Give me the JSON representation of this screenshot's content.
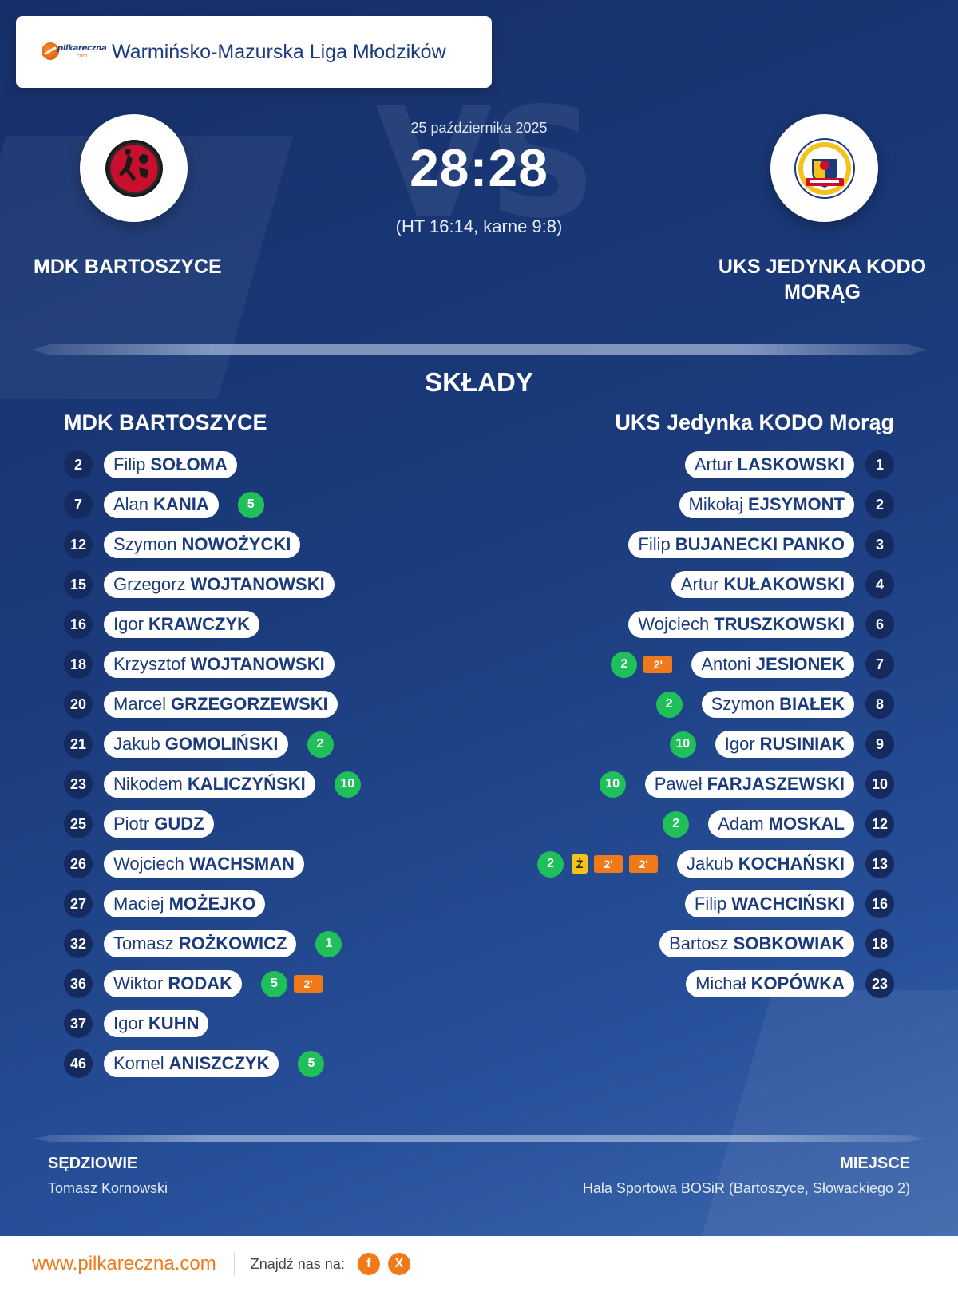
{
  "league": {
    "title": "Warmińsko-Mazurska Liga Młodzików",
    "logo_brand": "pilkareczna",
    "logo_sub": ".com"
  },
  "match": {
    "date": "25 października 2025",
    "score": "28:28",
    "detail": "(HT 16:14, karne 9:8)",
    "vs_text": "VS"
  },
  "home_team": {
    "name": "MDK BARTOSZYCE",
    "lineup_title": "MDK BARTOSZYCE",
    "logo_icon": "mdk-bartoszyce-crest-icon"
  },
  "away_team": {
    "name": "UKS JEDYNKA KODO MORĄG",
    "lineup_title": "UKS Jedynka KODO Morąg",
    "logo_icon": "uks-jedynka-crest-icon"
  },
  "section_title": "SKŁADY",
  "home_players": [
    {
      "number": "2",
      "first": "Filip",
      "last": "SOŁOMA",
      "goals": "",
      "yellow": "",
      "suspensions": []
    },
    {
      "number": "7",
      "first": "Alan",
      "last": "KANIA",
      "goals": "5",
      "yellow": "",
      "suspensions": []
    },
    {
      "number": "12",
      "first": "Szymon",
      "last": "NOWOŻYCKI",
      "goals": "",
      "yellow": "",
      "suspensions": []
    },
    {
      "number": "15",
      "first": "Grzegorz",
      "last": "WOJTANOWSKI",
      "goals": "",
      "yellow": "",
      "suspensions": []
    },
    {
      "number": "16",
      "first": "Igor",
      "last": "KRAWCZYK",
      "goals": "",
      "yellow": "",
      "suspensions": []
    },
    {
      "number": "18",
      "first": "Krzysztof",
      "last": "WOJTANOWSKI",
      "goals": "",
      "yellow": "",
      "suspensions": []
    },
    {
      "number": "20",
      "first": "Marcel",
      "last": "GRZEGORZEWSKI",
      "goals": "",
      "yellow": "",
      "suspensions": []
    },
    {
      "number": "21",
      "first": "Jakub",
      "last": "GOMOLIŃSKI",
      "goals": "2",
      "yellow": "",
      "suspensions": []
    },
    {
      "number": "23",
      "first": "Nikodem",
      "last": "KALICZYŃSKI",
      "goals": "10",
      "yellow": "",
      "suspensions": []
    },
    {
      "number": "25",
      "first": "Piotr",
      "last": "GUDZ",
      "goals": "",
      "yellow": "",
      "suspensions": []
    },
    {
      "number": "26",
      "first": "Wojciech",
      "last": "WACHSMAN",
      "goals": "",
      "yellow": "",
      "suspensions": []
    },
    {
      "number": "27",
      "first": "Maciej",
      "last": "MOŻEJKO",
      "goals": "",
      "yellow": "",
      "suspensions": []
    },
    {
      "number": "32",
      "first": "Tomasz",
      "last": "ROŻKOWICZ",
      "goals": "1",
      "yellow": "",
      "suspensions": []
    },
    {
      "number": "36",
      "first": "Wiktor",
      "last": "RODAK",
      "goals": "5",
      "yellow": "",
      "suspensions": [
        "2'"
      ]
    },
    {
      "number": "37",
      "first": "Igor",
      "last": "KUHN",
      "goals": "",
      "yellow": "",
      "suspensions": []
    },
    {
      "number": "46",
      "first": "Kornel",
      "last": "ANISZCZYK",
      "goals": "5",
      "yellow": "",
      "suspensions": []
    }
  ],
  "away_players": [
    {
      "number": "1",
      "first": "Artur",
      "last": "LASKOWSKI",
      "goals": "",
      "yellow": "",
      "suspensions": []
    },
    {
      "number": "2",
      "first": "Mikołaj",
      "last": "EJSYMONT",
      "goals": "",
      "yellow": "",
      "suspensions": []
    },
    {
      "number": "3",
      "first": "Filip",
      "last": "BUJANECKI PANKO",
      "goals": "",
      "yellow": "",
      "suspensions": []
    },
    {
      "number": "4",
      "first": "Artur",
      "last": "KUŁAKOWSKI",
      "goals": "",
      "yellow": "",
      "suspensions": []
    },
    {
      "number": "6",
      "first": "Wojciech",
      "last": "TRUSZKOWSKI",
      "goals": "",
      "yellow": "",
      "suspensions": []
    },
    {
      "number": "7",
      "first": "Antoni",
      "last": "JESIONEK",
      "goals": "2",
      "yellow": "",
      "suspensions": [
        "2'"
      ]
    },
    {
      "number": "8",
      "first": "Szymon",
      "last": "BIAŁEK",
      "goals": "2",
      "yellow": "",
      "suspensions": []
    },
    {
      "number": "9",
      "first": "Igor",
      "last": "RUSINIAK",
      "goals": "10",
      "yellow": "",
      "suspensions": []
    },
    {
      "number": "10",
      "first": "Paweł",
      "last": "FARJASZEWSKI",
      "goals": "10",
      "yellow": "",
      "suspensions": []
    },
    {
      "number": "12",
      "first": "Adam",
      "last": "MOSKAL",
      "goals": "2",
      "yellow": "",
      "suspensions": []
    },
    {
      "number": "13",
      "first": "Jakub",
      "last": "KOCHAŃSKI",
      "goals": "2",
      "yellow": "Ż",
      "suspensions": [
        "2'",
        "2'"
      ]
    },
    {
      "number": "16",
      "first": "Filip",
      "last": "WACHCIŃSKI",
      "goals": "",
      "yellow": "",
      "suspensions": []
    },
    {
      "number": "18",
      "first": "Bartosz",
      "last": "SOBKOWIAK",
      "goals": "",
      "yellow": "",
      "suspensions": []
    },
    {
      "number": "23",
      "first": "Michał",
      "last": "KOPÓWKA",
      "goals": "",
      "yellow": "",
      "suspensions": []
    }
  ],
  "officials": {
    "label": "SĘDZIOWIE",
    "value": "Tomasz Kornowski"
  },
  "venue": {
    "label": "MIEJSCE",
    "value": "Hala Sportowa BOSiR (Bartoszyce, Słowackiego 2)"
  },
  "footer": {
    "url": "www.pilkareczna.com",
    "find_us": "Znajdź nas na:",
    "facebook": "f",
    "x": "X"
  },
  "colors": {
    "background": "#1b3b7c",
    "accent_orange": "#f07a1a",
    "goal_green": "#1fbf5a",
    "yellow_card": "#f3c21b",
    "number_badge": "#152a5e"
  }
}
